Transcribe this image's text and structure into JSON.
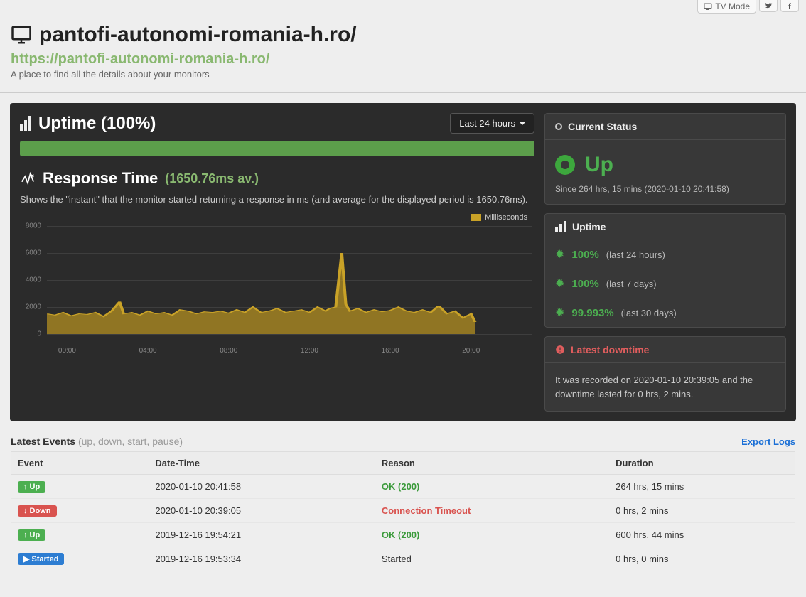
{
  "topbar": {
    "tv_mode": "TV Mode"
  },
  "header": {
    "title": "pantofi-autonomi-romania-h.ro/",
    "url": "https://pantofi-autonomi-romania-h.ro/",
    "tagline": "A place to find all the details about your monitors"
  },
  "uptime": {
    "title_label": "Uptime",
    "percent_text": "(100%)",
    "dropdown": "Last 24 hours",
    "bar_percent": 100,
    "bar_color": "#5c9e4b"
  },
  "response": {
    "title": "Response Time",
    "avg_text": "(1650.76ms av.)",
    "desc": "Shows the \"instant\" that the monitor started returning a response in ms (and average for the displayed period is 1650.76ms).",
    "legend_label": "Milliseconds",
    "chart": {
      "y_ticks": [
        0,
        2000,
        4000,
        6000,
        8000
      ],
      "ylim": [
        0,
        8000
      ],
      "x_ticks": [
        "00:00",
        "04:00",
        "08:00",
        "12:00",
        "16:00",
        "20:00"
      ],
      "xlim": [
        0,
        24
      ],
      "line_color": "#c9a227",
      "fill_color": "#b38f22",
      "fill_opacity": 0.75,
      "grid_color": "#3e3e3e",
      "points": [
        [
          0,
          1500
        ],
        [
          0.4,
          1400
        ],
        [
          0.8,
          1600
        ],
        [
          1.2,
          1350
        ],
        [
          1.6,
          1500
        ],
        [
          2.0,
          1450
        ],
        [
          2.4,
          1600
        ],
        [
          2.8,
          1300
        ],
        [
          3.2,
          1700
        ],
        [
          3.6,
          2400
        ],
        [
          3.8,
          1500
        ],
        [
          4.2,
          1600
        ],
        [
          4.6,
          1400
        ],
        [
          5.0,
          1700
        ],
        [
          5.4,
          1500
        ],
        [
          5.8,
          1600
        ],
        [
          6.2,
          1400
        ],
        [
          6.6,
          1800
        ],
        [
          7.0,
          1700
        ],
        [
          7.4,
          1500
        ],
        [
          7.8,
          1650
        ],
        [
          8.2,
          1600
        ],
        [
          8.6,
          1700
        ],
        [
          9.0,
          1550
        ],
        [
          9.4,
          1800
        ],
        [
          9.8,
          1600
        ],
        [
          10.2,
          2000
        ],
        [
          10.6,
          1600
        ],
        [
          11.0,
          1700
        ],
        [
          11.4,
          1900
        ],
        [
          11.8,
          1600
        ],
        [
          12.2,
          1700
        ],
        [
          12.6,
          1800
        ],
        [
          13.0,
          1600
        ],
        [
          13.4,
          2000
        ],
        [
          13.8,
          1700
        ],
        [
          14.0,
          1900
        ],
        [
          14.3,
          2000
        ],
        [
          14.6,
          6000
        ],
        [
          14.8,
          2200
        ],
        [
          15.0,
          1700
        ],
        [
          15.4,
          1900
        ],
        [
          15.8,
          1600
        ],
        [
          16.2,
          1800
        ],
        [
          16.6,
          1650
        ],
        [
          17.0,
          1750
        ],
        [
          17.4,
          2000
        ],
        [
          17.8,
          1700
        ],
        [
          18.2,
          1600
        ],
        [
          18.6,
          1800
        ],
        [
          19.0,
          1600
        ],
        [
          19.4,
          2100
        ],
        [
          19.8,
          1500
        ],
        [
          20.2,
          1700
        ],
        [
          20.6,
          1200
        ],
        [
          21.0,
          1500
        ],
        [
          21.2,
          900
        ]
      ]
    }
  },
  "status": {
    "head": "Current Status",
    "label": "Up",
    "since": "Since 264 hrs, 15 mins (2020-01-10 20:41:58)",
    "color": "#4caf50"
  },
  "uptime_panel": {
    "head": "Uptime",
    "rows": [
      {
        "pct": "100%",
        "label": "(last 24 hours)"
      },
      {
        "pct": "100%",
        "label": "(last 7 days)"
      },
      {
        "pct": "99.993%",
        "label": "(last 30 days)"
      }
    ]
  },
  "downtime": {
    "head": "Latest downtime",
    "text": "It was recorded on 2020-01-10 20:39:05 and the downtime lasted for 0 hrs, 2 mins."
  },
  "events": {
    "title": "Latest Events",
    "subtitle": "(up, down, start, pause)",
    "export": "Export Logs",
    "columns": [
      "Event",
      "Date-Time",
      "Reason",
      "Duration"
    ],
    "rows": [
      {
        "badge": "up",
        "badge_label": "Up",
        "datetime": "2020-01-10 20:41:58",
        "reason": "OK (200)",
        "reason_class": "ok",
        "duration": "264 hrs, 15 mins"
      },
      {
        "badge": "down",
        "badge_label": "Down",
        "datetime": "2020-01-10 20:39:05",
        "reason": "Connection Timeout",
        "reason_class": "bad",
        "duration": "0 hrs, 2 mins"
      },
      {
        "badge": "up",
        "badge_label": "Up",
        "datetime": "2019-12-16 19:54:21",
        "reason": "OK (200)",
        "reason_class": "ok",
        "duration": "600 hrs, 44 mins"
      },
      {
        "badge": "started",
        "badge_label": "Started",
        "datetime": "2019-12-16 19:53:34",
        "reason": "Started",
        "reason_class": "",
        "duration": "0 hrs, 0 mins"
      }
    ]
  }
}
